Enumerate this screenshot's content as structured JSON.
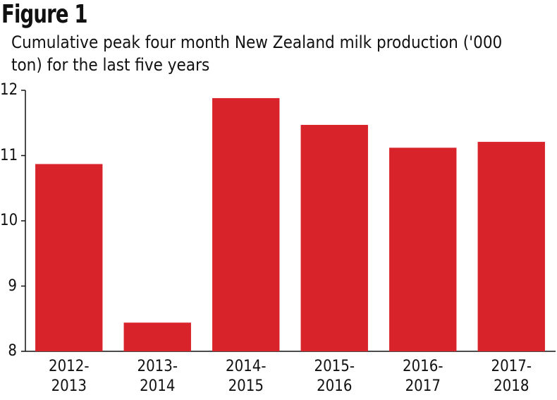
{
  "chart_data": {
    "type": "bar",
    "title": "Figure 1",
    "subtitle": "Cumulative peak four month New Zealand milk production ('000 ton) for the last five years",
    "categories": [
      "2012-2013",
      "2013-2014",
      "2014-2015",
      "2015-2016",
      "2016-2017",
      "2017-2018"
    ],
    "values": [
      10.87,
      8.44,
      11.88,
      11.47,
      11.12,
      11.21
    ],
    "color": "#d9232a",
    "ylim": [
      8,
      12
    ],
    "yticks": [
      8,
      9,
      10,
      11,
      12
    ],
    "grid": false
  }
}
